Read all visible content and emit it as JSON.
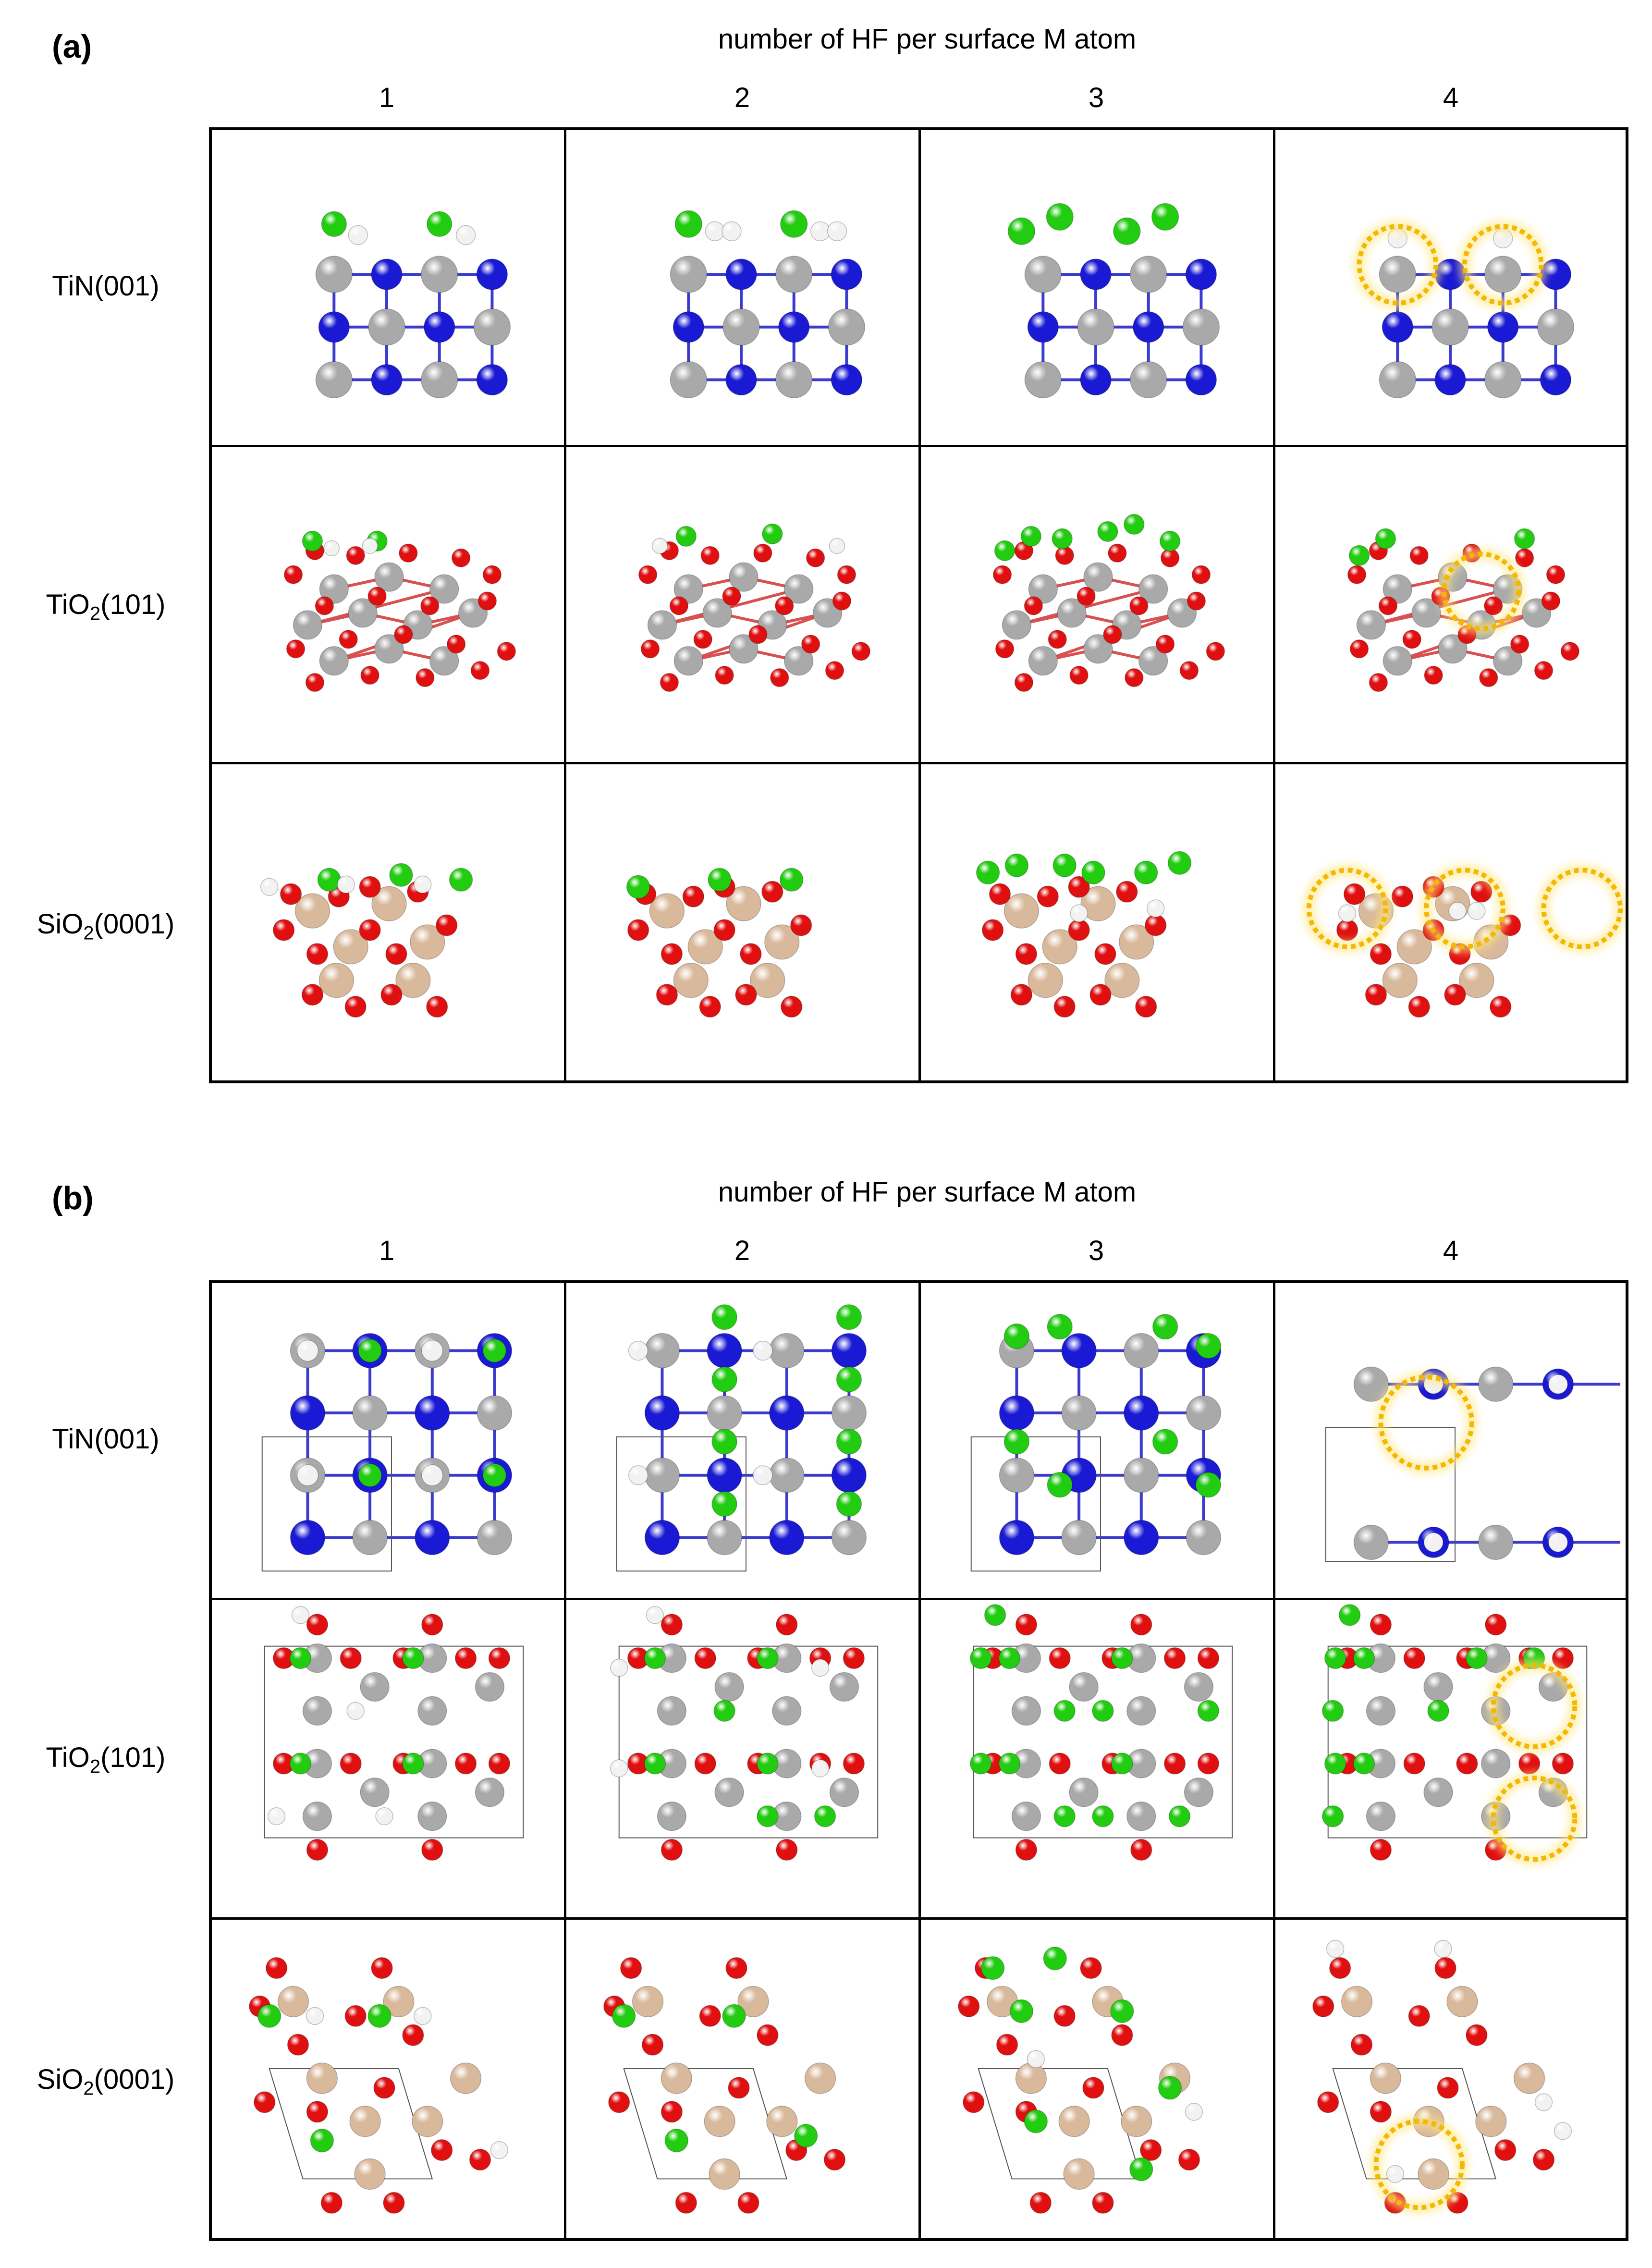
{
  "figure": {
    "panels": [
      {
        "id": "a",
        "label": "(a)",
        "axis_title": "number of HF per surface M atom",
        "columns": [
          "1",
          "2",
          "3",
          "4"
        ],
        "rows": [
          {
            "label_main": "TiN(001)",
            "label_sub": ""
          },
          {
            "label_main": "TiO",
            "label_sub": "2",
            "label_tail": "(101)"
          },
          {
            "label_main": "SiO",
            "label_sub": "2",
            "label_tail": "(0001)"
          }
        ],
        "view": "side"
      },
      {
        "id": "b",
        "label": "(b)",
        "axis_title": "number of HF per surface M atom",
        "columns": [
          "1",
          "2",
          "3",
          "4"
        ],
        "rows": [
          {
            "label_main": "TiN(001)",
            "label_sub": ""
          },
          {
            "label_main": "TiO",
            "label_sub": "2",
            "label_tail": "(101)"
          },
          {
            "label_main": "SiO",
            "label_sub": "2",
            "label_tail": "(0001)"
          }
        ],
        "view": "top"
      }
    ],
    "atom_colors": {
      "Ti": "#a9a9a9",
      "N": "#1a1ad4",
      "O": "#e01010",
      "F": "#22cc10",
      "H": "#f2f2f2",
      "Si": "#d9b99b",
      "highlight": "#f5b800"
    }
  }
}
